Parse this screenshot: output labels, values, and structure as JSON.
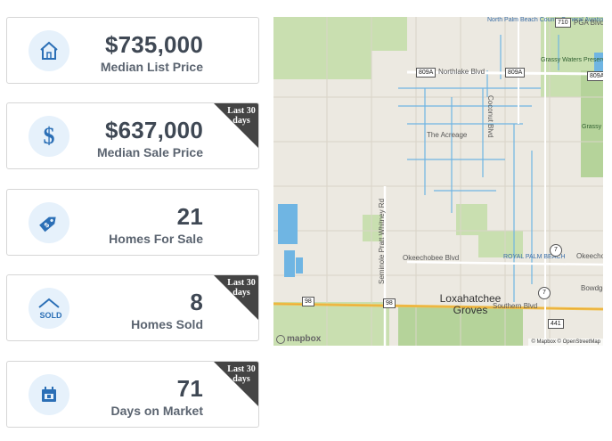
{
  "stats": [
    {
      "value": "$735,000",
      "label": "Median List Price",
      "icon": "house-icon",
      "badge": ""
    },
    {
      "value": "$637,000",
      "label": "Median Sale Price",
      "icon": "dollar-icon",
      "badge": "Last 30 days"
    },
    {
      "value": "21",
      "label": "Homes For Sale",
      "icon": "price-tag-icon",
      "badge": ""
    },
    {
      "value": "8",
      "label": "Homes Sold",
      "icon": "sold-house-icon",
      "badge": "Last 30 days"
    },
    {
      "value": "71",
      "label": "Days on Market",
      "icon": "calendar-icon",
      "badge": "Last 30 days"
    }
  ],
  "badge_text": "Last 30 days",
  "map": {
    "labels": {
      "airport": "North Palm Beach County General Aviation Airport",
      "preserve": "Grassy Waters Preserve",
      "grassy_right": "Grassy",
      "northlake": "Northlake Blvd",
      "coconut": "Coconut Blvd",
      "acreage": "The Acreage",
      "seminole": "Seminole Pratt Whitney Rd",
      "okeechobee": "Okeechobee Blvd",
      "okeechobee_right": "Okeechob",
      "royal_palm": "ROYAL PALM BEACH",
      "loxahatchee": "Loxahatchee Groves",
      "southern": "Southern Blvd",
      "bowdge": "Bowdge"
    },
    "shields": {
      "r809a_1": "809A",
      "r809a_2": "809A",
      "r809a_3": "809A",
      "r710": "710",
      "pga": "PGA Blvd",
      "r7a": "7",
      "r7b": "7",
      "r98a": "98",
      "r98b": "98",
      "r441": "441"
    },
    "logo": "mapbox",
    "attribution": "© Mapbox © OpenStreetMap"
  },
  "colors": {
    "accent": "#2b6fb6",
    "icon_bg": "#e6f1fb",
    "badge": "#444444",
    "value_text": "#3f4854",
    "label_text": "#5b6470",
    "water": "#6fb5e3",
    "park": "#c9dfb0",
    "land": "#ece9e1"
  }
}
